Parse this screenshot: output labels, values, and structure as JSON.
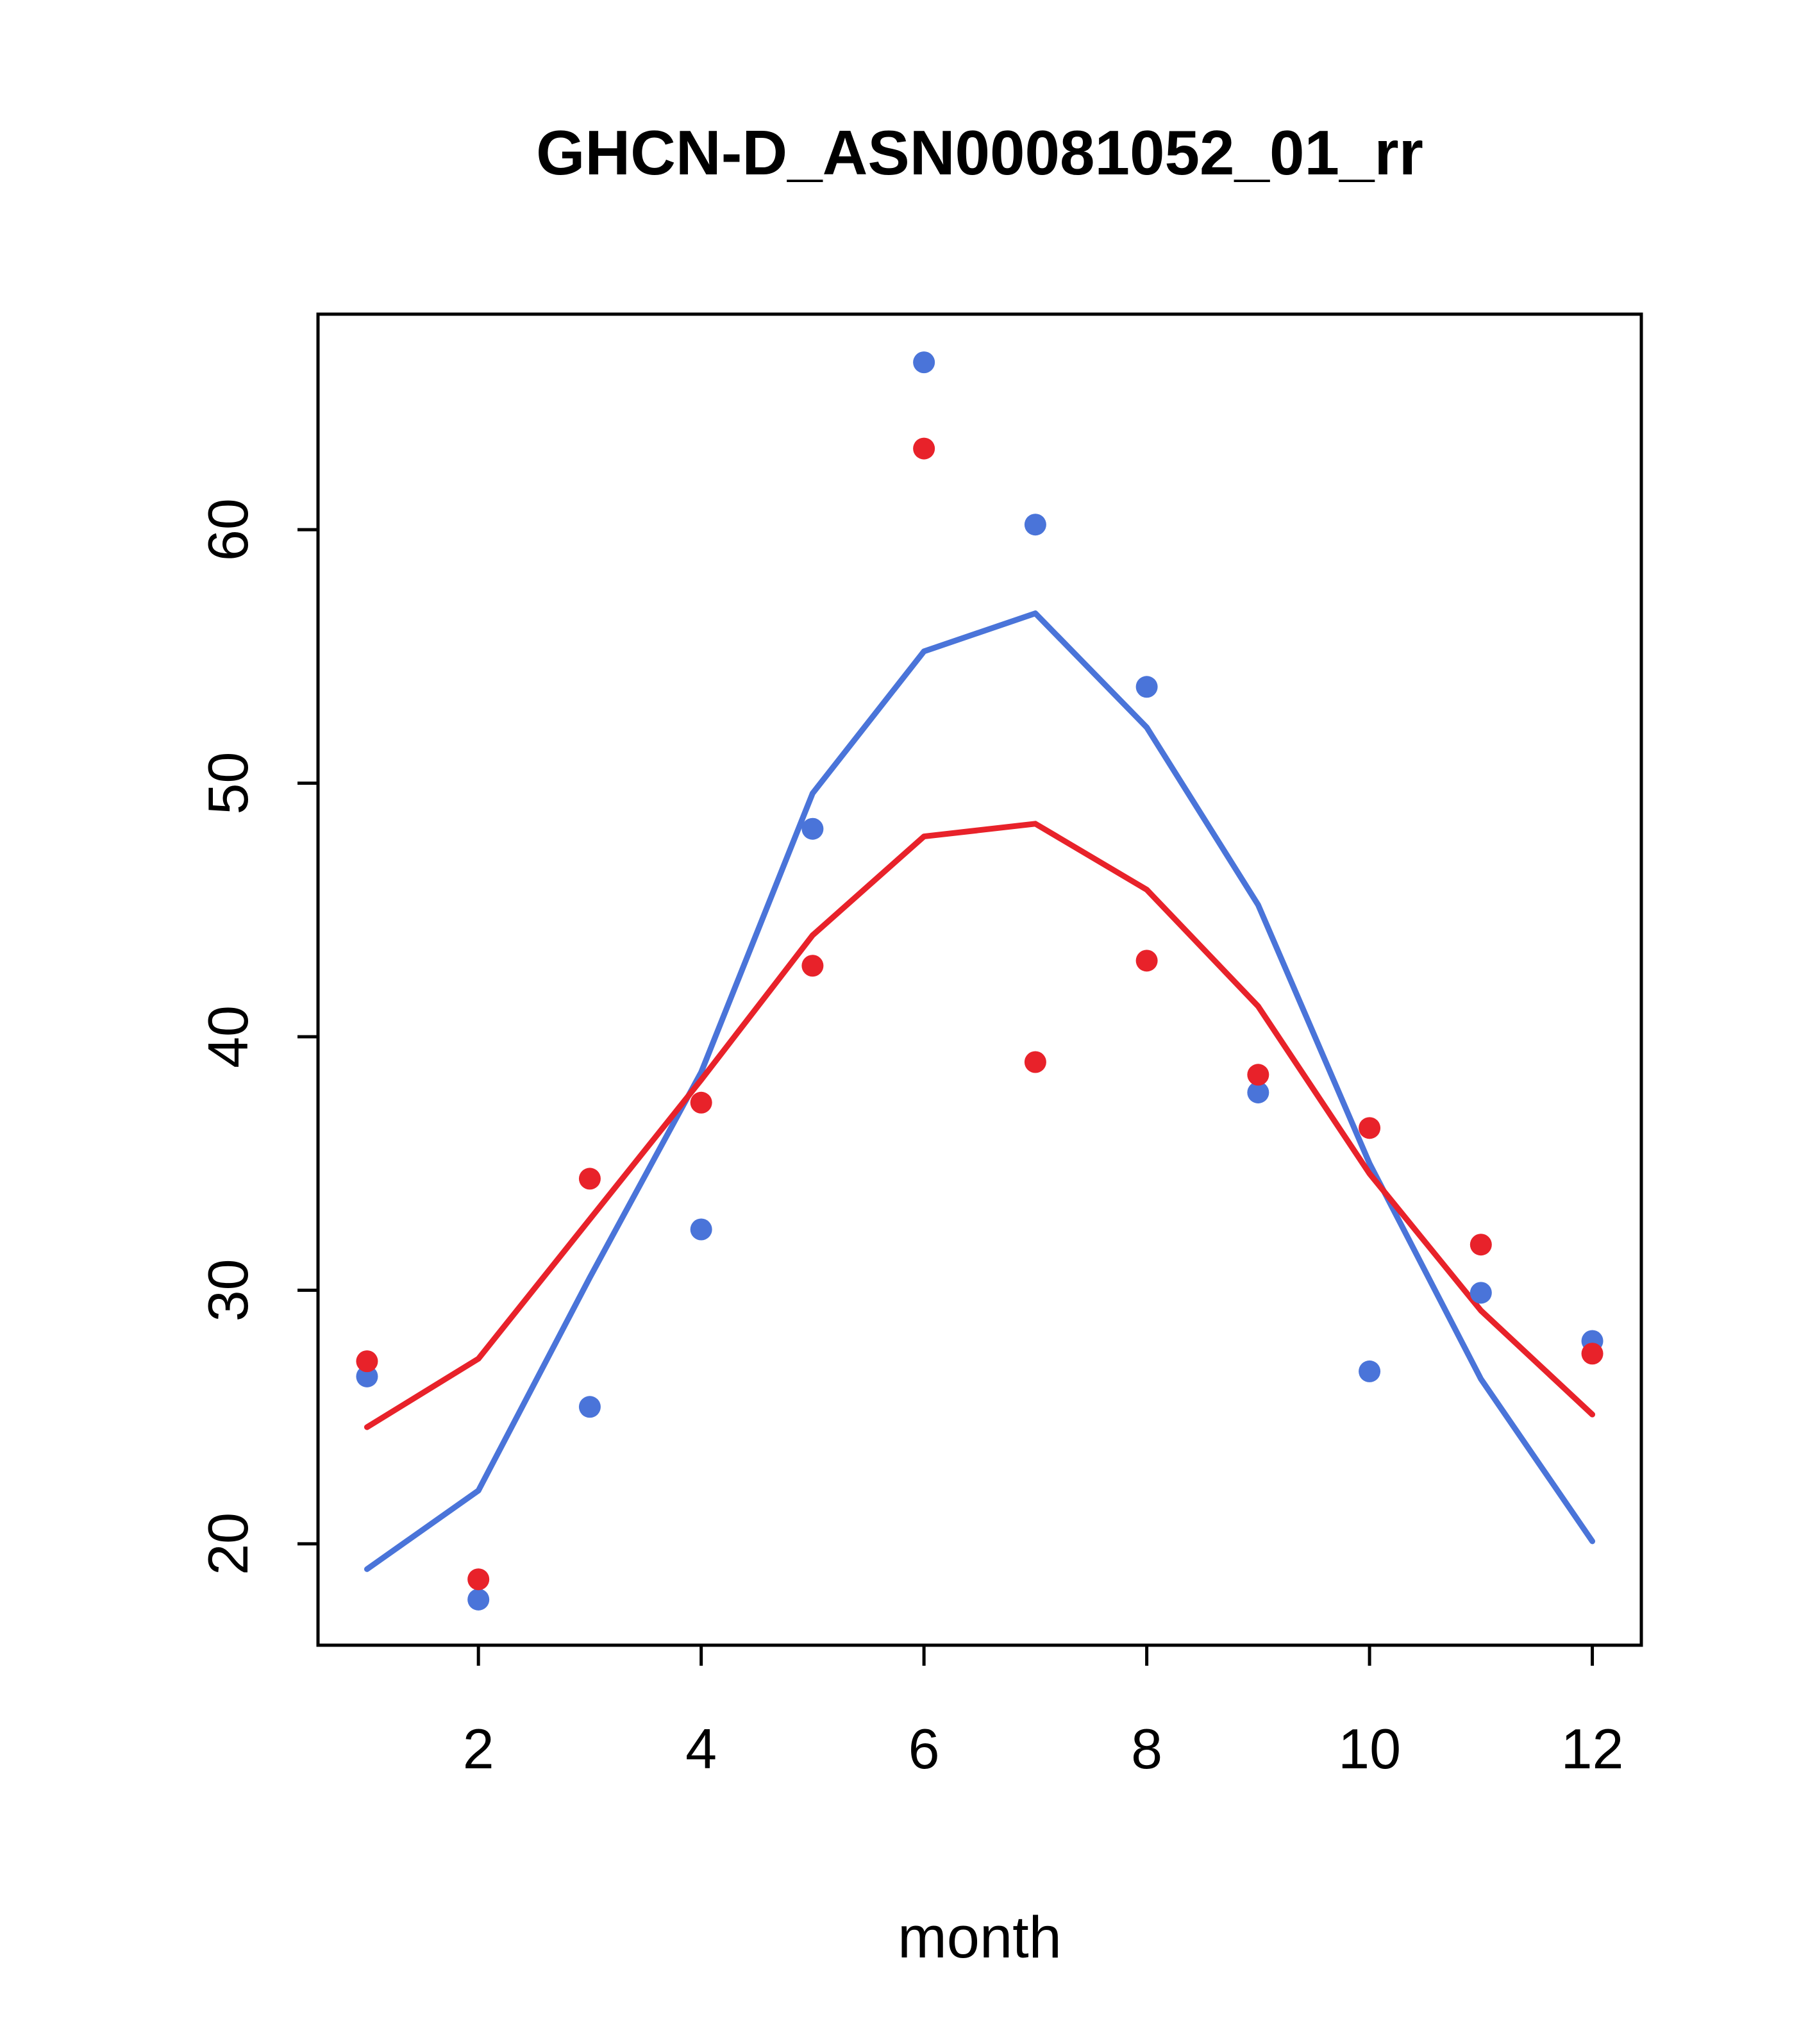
{
  "title": "GHCN-D_ASN00081052_01_rr",
  "chart_data": {
    "type": "scatter",
    "title": "GHCN-D_ASN00081052_01_rr",
    "xlabel": "month",
    "ylabel": "",
    "xlim": [
      0.56,
      12.44
    ],
    "ylim": [
      16,
      68.5
    ],
    "x_ticks": [
      2,
      4,
      6,
      8,
      10,
      12
    ],
    "y_ticks": [
      20,
      30,
      40,
      50,
      60
    ],
    "grid": false,
    "legend": null,
    "colors": {
      "blue": "#4a74d9",
      "red": "#e8222a",
      "axis": "#000000"
    },
    "x": [
      1,
      2,
      3,
      4,
      5,
      6,
      7,
      8,
      9,
      10,
      11,
      12
    ],
    "series": [
      {
        "name": "blue-points",
        "type": "points",
        "color": "#4a74d9",
        "values": [
          26.6,
          17.8,
          25.4,
          32.4,
          48.2,
          66.6,
          60.2,
          53.8,
          37.8,
          26.8,
          29.9,
          28.0
        ]
      },
      {
        "name": "red-points",
        "type": "points",
        "color": "#e8222a",
        "values": [
          27.2,
          18.6,
          34.4,
          37.4,
          42.8,
          63.2,
          39.0,
          43.0,
          38.5,
          36.4,
          31.8,
          27.5
        ]
      },
      {
        "name": "blue-line",
        "type": "line",
        "color": "#4a74d9",
        "values": [
          19.0,
          22.1,
          30.5,
          38.6,
          49.6,
          55.2,
          56.7,
          52.2,
          45.2,
          35.0,
          26.5,
          20.1
        ]
      },
      {
        "name": "red-line",
        "type": "line",
        "color": "#e8222a",
        "values": [
          24.6,
          27.3,
          32.8,
          38.3,
          44.0,
          47.9,
          48.4,
          45.8,
          41.2,
          34.6,
          29.2,
          25.1
        ]
      }
    ]
  }
}
